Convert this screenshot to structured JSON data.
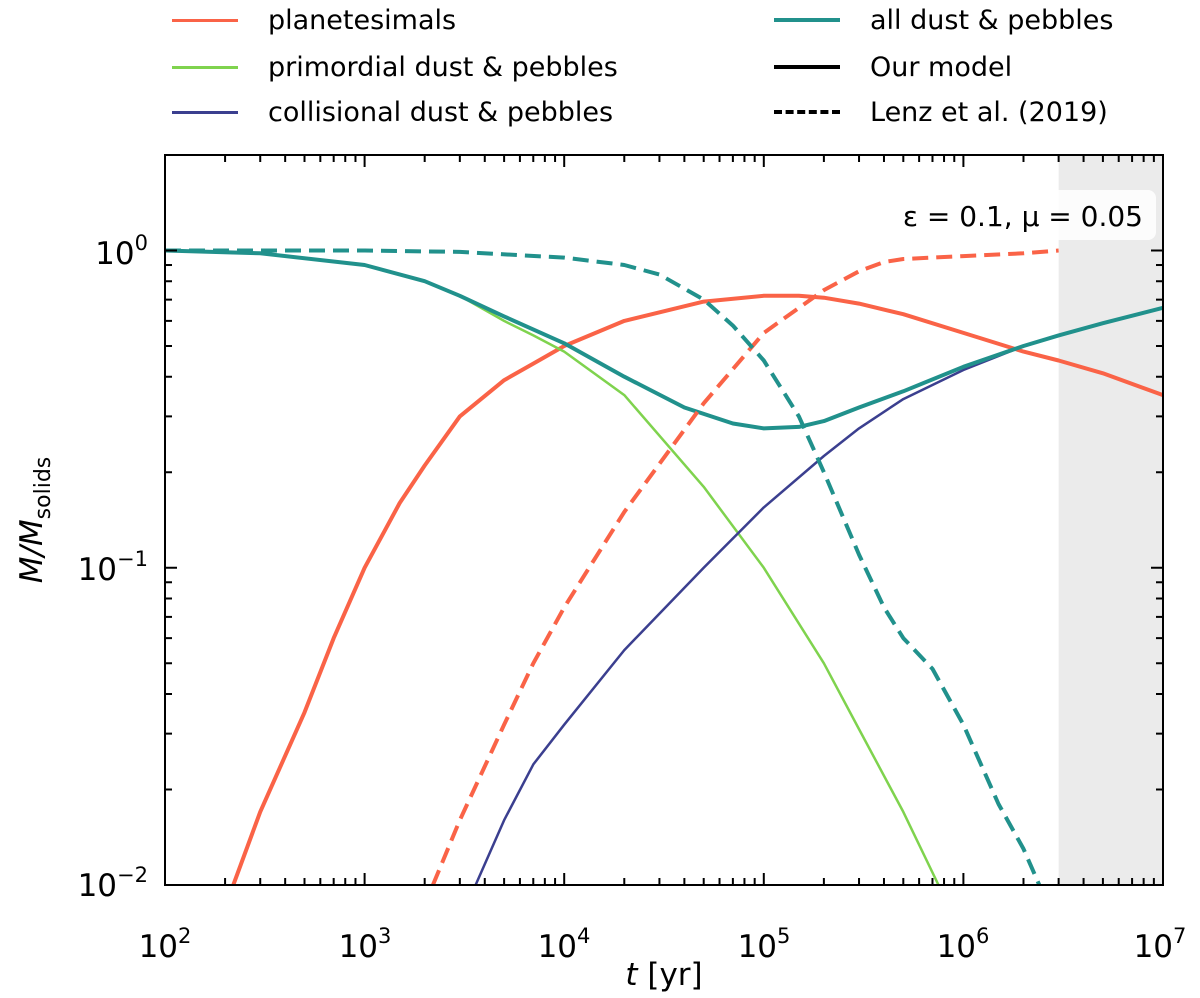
{
  "chart_data": {
    "type": "line",
    "xscale": "log",
    "yscale": "log",
    "xlim": [
      100,
      10000000
    ],
    "ylim": [
      0.01,
      2.0
    ],
    "xlabel_var": "t",
    "xlabel_unit": "[yr]",
    "ylabel_var": "M/M",
    "ylabel_sub": "solids",
    "x_tick_labels": [
      {
        "value": 100,
        "base": "10",
        "exp": "2"
      },
      {
        "value": 1000,
        "base": "10",
        "exp": "3"
      },
      {
        "value": 10000,
        "base": "10",
        "exp": "4"
      },
      {
        "value": 100000,
        "base": "10",
        "exp": "5"
      },
      {
        "value": 1000000,
        "base": "10",
        "exp": "6"
      },
      {
        "value": 10000000,
        "base": "10",
        "exp": "7"
      }
    ],
    "y_tick_labels": [
      {
        "value": 0.01,
        "base": "10",
        "exp": "−2"
      },
      {
        "value": 0.1,
        "base": "10",
        "exp": "−1"
      },
      {
        "value": 1,
        "base": "10",
        "exp": "0"
      }
    ],
    "annotation": "ε = 0.1,  μ = 0.05",
    "shaded_region": {
      "x_from": 3000000,
      "x_to": 10000000,
      "color": "#ebebeb"
    },
    "legend": {
      "placement": "above-plot",
      "entries": [
        {
          "label": "planetesimals",
          "color": "#fa6347",
          "style": "solid"
        },
        {
          "label": "primordial dust & pebbles",
          "color": "#7fd34e",
          "style": "solid"
        },
        {
          "label": "collisional dust & pebbles",
          "color": "#3b3f8f",
          "style": "solid"
        },
        {
          "label": "all dust & pebbles",
          "color": "#21918c",
          "style": "solid"
        },
        {
          "label": "Our model",
          "color": "#000000",
          "style": "solid"
        },
        {
          "label": "Lenz et al. (2019)",
          "color": "#000000",
          "style": "dashed"
        }
      ]
    },
    "series": [
      {
        "name": "planetesimals (our model)",
        "color": "#fa6347",
        "dash": false,
        "width": 4,
        "x": [
          220,
          300,
          500,
          700,
          1000,
          1500,
          2000,
          3000,
          5000,
          7000,
          10000,
          20000,
          50000,
          100000,
          150000,
          200000,
          300000,
          500000,
          1000000,
          2000000,
          3000000,
          5000000,
          10000000
        ],
        "y": [
          0.01,
          0.017,
          0.035,
          0.06,
          0.1,
          0.16,
          0.21,
          0.3,
          0.39,
          0.44,
          0.5,
          0.6,
          0.69,
          0.72,
          0.72,
          0.71,
          0.68,
          0.63,
          0.55,
          0.48,
          0.45,
          0.41,
          0.35
        ]
      },
      {
        "name": "primordial dust & pebbles (our model)",
        "color": "#7fd34e",
        "dash": false,
        "width": 2.5,
        "x": [
          100,
          300,
          1000,
          2000,
          3000,
          5000,
          7000,
          10000,
          20000,
          50000,
          100000,
          200000,
          300000,
          500000,
          750000
        ],
        "y": [
          1.0,
          0.98,
          0.9,
          0.8,
          0.72,
          0.6,
          0.54,
          0.48,
          0.35,
          0.18,
          0.1,
          0.05,
          0.031,
          0.017,
          0.01
        ]
      },
      {
        "name": "collisional dust & pebbles (our model)",
        "color": "#3b3f8f",
        "dash": false,
        "width": 2.5,
        "x": [
          3600,
          5000,
          7000,
          10000,
          20000,
          50000,
          100000,
          200000,
          300000,
          500000,
          1000000,
          2000000,
          3000000,
          5000000,
          10000000
        ],
        "y": [
          0.01,
          0.016,
          0.024,
          0.032,
          0.055,
          0.1,
          0.155,
          0.225,
          0.275,
          0.34,
          0.42,
          0.5,
          0.54,
          0.59,
          0.66
        ]
      },
      {
        "name": "all dust & pebbles (our model)",
        "color": "#21918c",
        "dash": false,
        "width": 4,
        "x": [
          100,
          300,
          1000,
          2000,
          3000,
          5000,
          10000,
          20000,
          40000,
          70000,
          100000,
          150000,
          200000,
          300000,
          500000,
          1000000,
          2000000,
          3000000,
          5000000,
          10000000
        ],
        "y": [
          1.0,
          0.98,
          0.9,
          0.8,
          0.72,
          0.62,
          0.51,
          0.4,
          0.32,
          0.285,
          0.275,
          0.278,
          0.29,
          0.32,
          0.36,
          0.43,
          0.5,
          0.54,
          0.59,
          0.66
        ]
      },
      {
        "name": "planetesimals (Lenz et al. 2019)",
        "color": "#fa6347",
        "dash": true,
        "width": 4,
        "x": [
          2200,
          3000,
          5000,
          7000,
          10000,
          20000,
          50000,
          100000,
          200000,
          300000,
          400000,
          500000,
          1000000,
          2000000,
          3000000
        ],
        "y": [
          0.01,
          0.016,
          0.032,
          0.05,
          0.075,
          0.15,
          0.33,
          0.55,
          0.75,
          0.86,
          0.92,
          0.94,
          0.96,
          0.98,
          1.0
        ]
      },
      {
        "name": "all dust & pebbles (Lenz et al. 2019)",
        "color": "#21918c",
        "dash": true,
        "width": 4,
        "x": [
          100,
          1000,
          3000,
          10000,
          20000,
          30000,
          50000,
          70000,
          100000,
          150000,
          200000,
          300000,
          400000,
          500000,
          700000,
          1000000,
          1500000,
          2000000,
          2400000
        ],
        "y": [
          1.0,
          1.0,
          0.99,
          0.95,
          0.9,
          0.84,
          0.7,
          0.58,
          0.45,
          0.3,
          0.2,
          0.11,
          0.075,
          0.06,
          0.048,
          0.032,
          0.018,
          0.013,
          0.01
        ]
      }
    ]
  }
}
